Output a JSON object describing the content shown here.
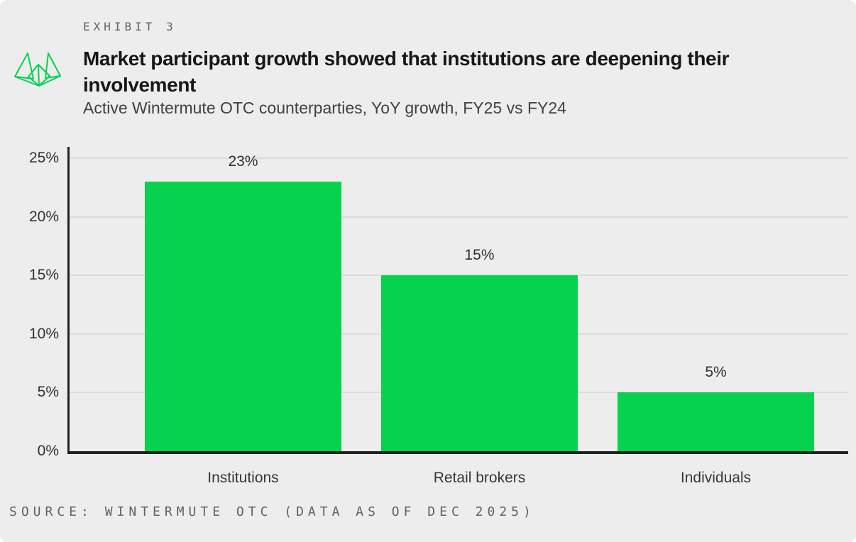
{
  "exhibit_label": "EXHIBIT 3",
  "logo": {
    "icon": "wintermute-origami-mark",
    "color": "#07D24E"
  },
  "chart_data": {
    "type": "bar",
    "title": "Market participant growth showed that institutions are deepening their involvement",
    "subtitle": "Active Wintermute OTC counterparties, YoY growth, FY25 vs FY24",
    "categories": [
      "Institutions",
      "Retail brokers",
      "Individuals"
    ],
    "values": [
      23,
      15,
      5
    ],
    "value_labels": [
      "23%",
      "15%",
      "5%"
    ],
    "ylim": [
      0,
      25
    ],
    "ytick_values": [
      0,
      5,
      10,
      15,
      20,
      25
    ],
    "ytick_labels": [
      "0%",
      "5%",
      "10%",
      "15%",
      "20%",
      "25%"
    ],
    "grid": "horizontal",
    "legend": "none",
    "bar_color": "#07D24E",
    "xlabel": "",
    "ylabel": ""
  },
  "footer": {
    "source": "SOURCE: WINTERMUTE OTC (DATA AS OF DEC 2025)"
  },
  "colors": {
    "card_background": "#EDEDED",
    "bar": "#07D24E",
    "logo_green": "#07D24E",
    "axis": "#1F2421",
    "gridline": "#DBDBDB",
    "title_text": "#151815",
    "subtitle_text": "#3E4240",
    "label_text": "#2E3230",
    "muted_text": "#5E6360"
  }
}
